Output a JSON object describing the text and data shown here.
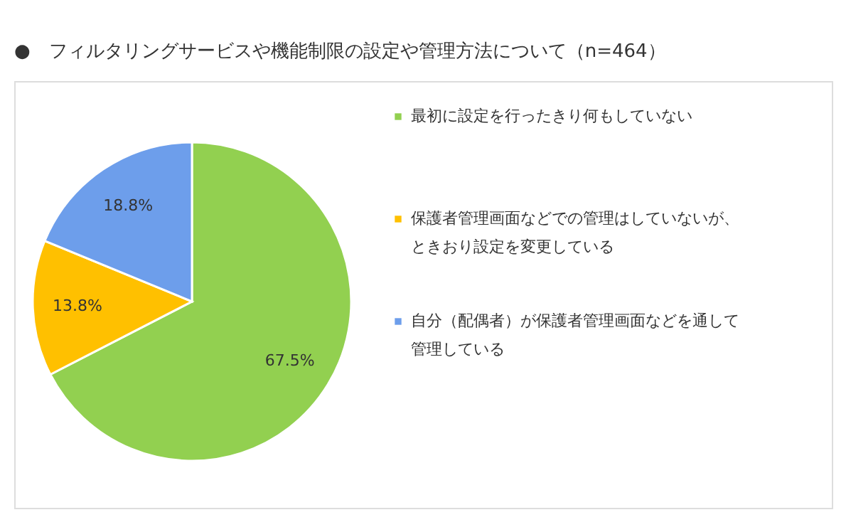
{
  "chart_data": {
    "type": "pie",
    "title": "●　フィルタリングサービスや機能制限の設定や管理方法について（n=464）",
    "categories": [
      "最初に設定を行ったきり何もしていない",
      "保護者管理画面などでの管理はしていないが、ときおり設定を変更している",
      "自分（配偶者）が保護者管理画面などを通して管理している"
    ],
    "values": [
      67.5,
      13.8,
      18.8
    ],
    "colors": [
      "#92d050",
      "#ffc000",
      "#6d9eeb"
    ],
    "value_labels": [
      "67.5%",
      "13.8%",
      "18.8%"
    ],
    "legend": "right"
  }
}
